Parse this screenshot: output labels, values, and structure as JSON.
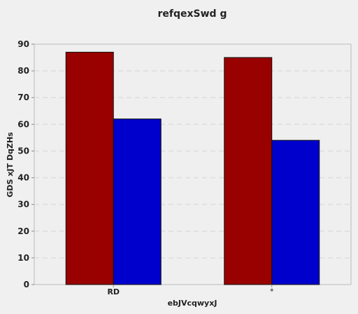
{
  "chart_data": {
    "type": "bar",
    "title": "refqexSwd g",
    "xlabel": "ebJVcqwyxJ",
    "ylabel": "GDS xJT DqZHs",
    "categories": [
      "RD",
      "°"
    ],
    "series": [
      {
        "color": "#990000",
        "values": [
          87,
          85
        ]
      },
      {
        "color": "#0000cc",
        "values": [
          62,
          54
        ]
      }
    ],
    "ylim": [
      0,
      90
    ],
    "yticks": [
      0,
      10,
      20,
      30,
      40,
      50,
      60,
      70,
      80,
      90
    ],
    "grid": true,
    "legend": "none"
  }
}
